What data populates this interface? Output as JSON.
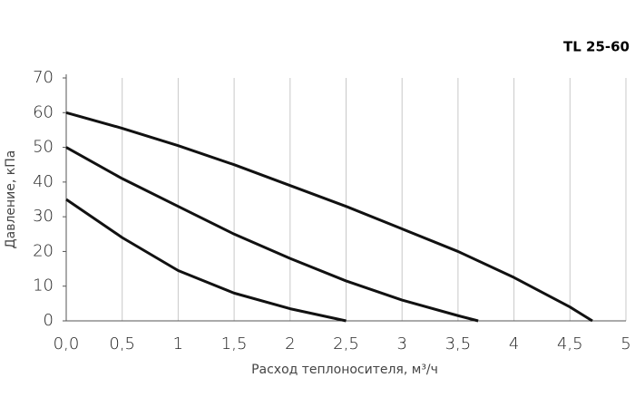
{
  "chart_data": {
    "type": "line",
    "title": "TL 25-60",
    "xlabel": "Расход теплоносителя, м³/ч",
    "ylabel": "Давление, кПа",
    "xlim": [
      0,
      5
    ],
    "ylim": [
      0,
      70
    ],
    "xticks": [
      {
        "value": 0,
        "label": "0,0"
      },
      {
        "value": 0.5,
        "label": "0,5"
      },
      1,
      {
        "value": 1.5,
        "label": "1,5"
      },
      2,
      {
        "value": 2.5,
        "label": "2,5"
      },
      3,
      {
        "value": 3.5,
        "label": "3,5"
      },
      4,
      {
        "value": 4.5,
        "label": "4,5"
      },
      5
    ],
    "yticks": [
      0,
      10,
      20,
      30,
      40,
      50,
      60,
      70
    ],
    "grid": "x",
    "series": [
      {
        "color": "#111111",
        "x": [
          0,
          0.5,
          1,
          1.5,
          2,
          2.5,
          3,
          3.5,
          4,
          4.5,
          4.7
        ],
        "values": [
          60,
          55.5,
          50.5,
          45,
          39,
          33,
          26.5,
          20,
          12.5,
          4,
          0
        ]
      },
      {
        "color": "#111111",
        "x": [
          0,
          0.5,
          1,
          1.5,
          2,
          2.5,
          3,
          3.5,
          3.68
        ],
        "values": [
          50,
          41,
          33,
          25,
          18,
          11.5,
          6,
          1.5,
          0
        ]
      },
      {
        "color": "#111111",
        "x": [
          0,
          0.5,
          1,
          1.5,
          2,
          2.5
        ],
        "values": [
          35,
          24,
          14.5,
          8,
          3.5,
          0
        ]
      }
    ]
  }
}
